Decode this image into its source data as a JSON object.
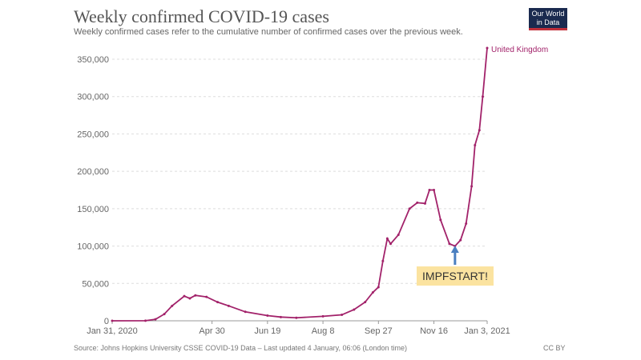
{
  "header": {
    "title": "Weekly confirmed COVID-19 cases",
    "subtitle": "Weekly confirmed cases refer to the cumulative number of confirmed cases over the previous week.",
    "logo": "Our World in Data"
  },
  "footer": {
    "source": "Source: Johns Hopkins University CSSE COVID-19 Data – Last updated 4 January, 06:06 (London time)",
    "license": "CC BY"
  },
  "annotation": {
    "label": "IMPFSTART!",
    "date": "2020-12-05",
    "arrow_color": "#4a7fc0"
  },
  "chart_data": {
    "type": "line",
    "title": "Weekly confirmed COVID-19 cases",
    "xlabel": "",
    "ylabel": "",
    "ylim": [
      0,
      350000
    ],
    "grid": "horizontal dashed",
    "y_ticks": [
      0,
      50000,
      100000,
      150000,
      200000,
      250000,
      300000,
      350000
    ],
    "y_tick_labels": [
      "0",
      "50,000",
      "100,000",
      "150,000",
      "200,000",
      "250,000",
      "300,000",
      "350,000"
    ],
    "x_ticks": [
      "2020-01-31",
      "2020-04-30",
      "2020-06-19",
      "2020-08-08",
      "2020-09-27",
      "2020-11-16",
      "2021-01-03"
    ],
    "x_tick_labels": [
      "Jan 31, 2020",
      "Apr 30",
      "Jun 19",
      "Aug 8",
      "Sep 27",
      "Nov 16",
      "Jan 3, 2021"
    ],
    "series": [
      {
        "name": "United Kingdom",
        "color": "#a2226a",
        "x": [
          "2020-01-31",
          "2020-03-01",
          "2020-03-10",
          "2020-03-18",
          "2020-03-25",
          "2020-04-05",
          "2020-04-10",
          "2020-04-15",
          "2020-04-25",
          "2020-05-05",
          "2020-05-15",
          "2020-05-30",
          "2020-06-19",
          "2020-07-01",
          "2020-07-15",
          "2020-08-08",
          "2020-08-25",
          "2020-09-05",
          "2020-09-15",
          "2020-09-22",
          "2020-09-27",
          "2020-10-01",
          "2020-10-05",
          "2020-10-08",
          "2020-10-15",
          "2020-10-25",
          "2020-11-01",
          "2020-11-08",
          "2020-11-12",
          "2020-11-16",
          "2020-11-22",
          "2020-11-30",
          "2020-12-05",
          "2020-12-10",
          "2020-12-15",
          "2020-12-20",
          "2020-12-23",
          "2020-12-27",
          "2020-12-30",
          "2021-01-03"
        ],
        "y": [
          0,
          100,
          2000,
          9000,
          20000,
          33000,
          30000,
          34000,
          32000,
          25000,
          20000,
          12000,
          7000,
          5000,
          4000,
          6000,
          8000,
          15000,
          25000,
          38000,
          45000,
          80000,
          110000,
          103000,
          115000,
          150000,
          158000,
          157000,
          175000,
          175000,
          135000,
          103000,
          100000,
          108000,
          130000,
          180000,
          235000,
          255000,
          300000,
          365000
        ]
      }
    ]
  }
}
